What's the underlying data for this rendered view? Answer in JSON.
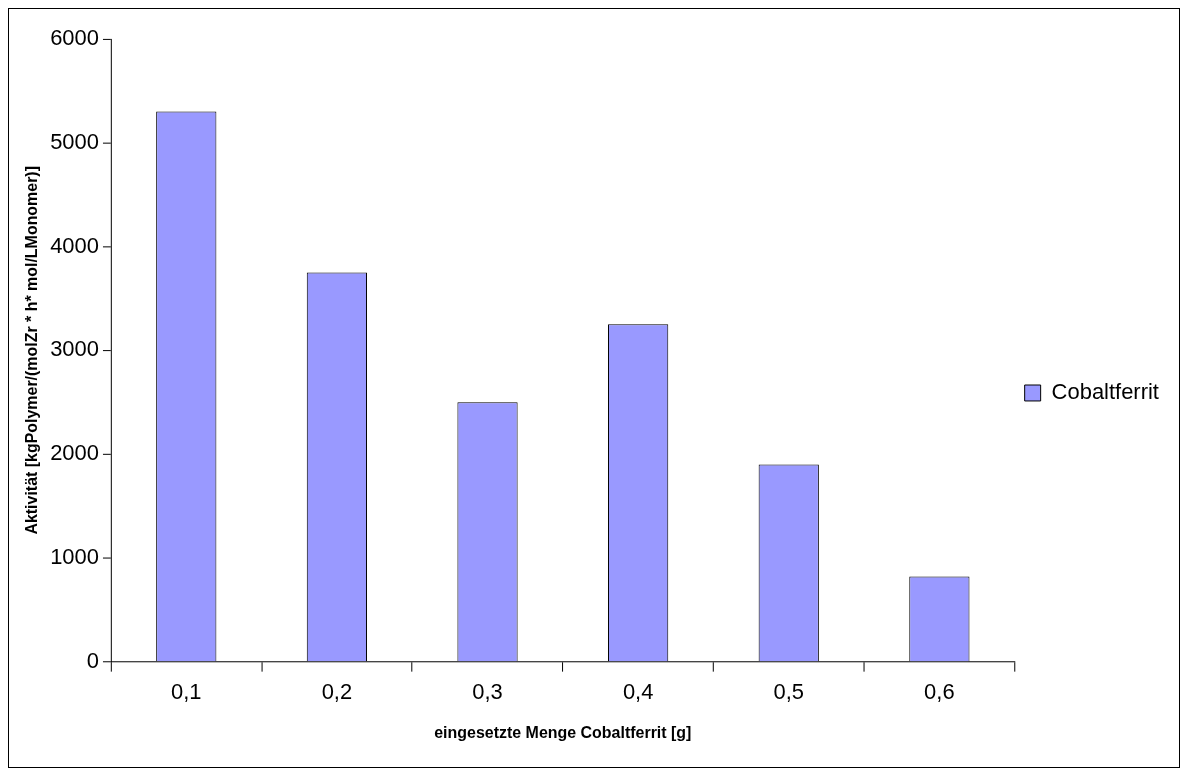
{
  "chart_data": {
    "type": "bar",
    "xlabel": "eingesetzte Menge Cobaltferrit [g]",
    "ylabel": "Aktivität [kgPolymer/(molZr * h* mol/LMonomer)]",
    "categories": [
      "0,1",
      "0,2",
      "0,3",
      "0,4",
      "0,5",
      "0,6"
    ],
    "series": [
      {
        "name": "Cobaltferrit",
        "color": "#9999ff",
        "values": [
          5300,
          3750,
          2500,
          3250,
          1900,
          820
        ]
      }
    ],
    "ylim": [
      0,
      6000
    ],
    "yticks": [
      0,
      1000,
      2000,
      3000,
      4000,
      5000,
      6000
    ],
    "legend": "right"
  }
}
